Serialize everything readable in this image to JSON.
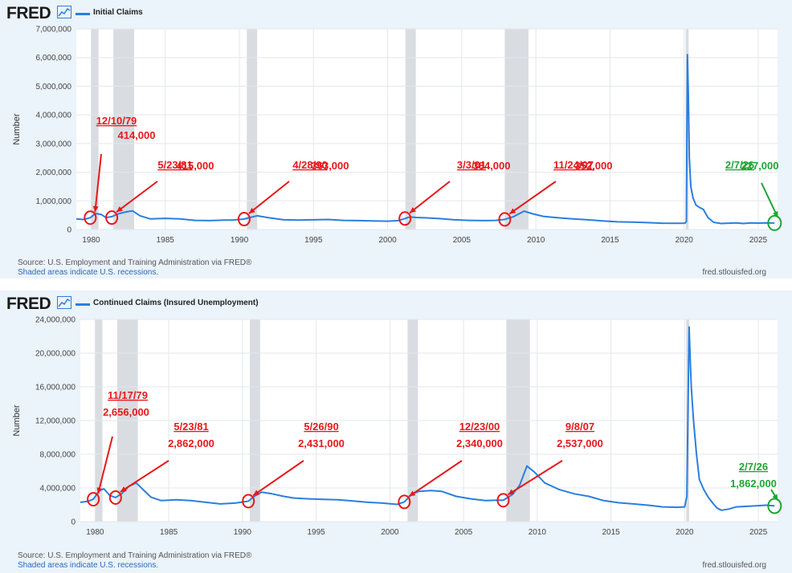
{
  "brand": {
    "logo_text": "FRED"
  },
  "colors": {
    "series": "#2a7fde",
    "recession": "#d9dde2",
    "red_annotation": "#e8171b",
    "green_annotation": "#1ea534",
    "panel_bg": "#ebf3fb"
  },
  "chart_data": [
    {
      "type": "line",
      "legend": "Initial Claims",
      "ylabel": "Number",
      "ylim": [
        0,
        7000000
      ],
      "yticks": [
        0,
        1000000,
        2000000,
        3000000,
        4000000,
        5000000,
        6000000,
        7000000
      ],
      "ytick_labels": [
        "0",
        "1,000,000",
        "2,000,000",
        "3,000,000",
        "4,000,000",
        "5,000,000",
        "6,000,000",
        "7,000,000"
      ],
      "xlim": [
        1979,
        2026.3
      ],
      "xticks": [
        1980,
        1985,
        1990,
        1995,
        2000,
        2005,
        2010,
        2015,
        2020,
        2025
      ],
      "recessions": [
        [
          1980.0,
          1980.5
        ],
        [
          1981.5,
          1982.9
        ],
        [
          1990.5,
          1991.2
        ],
        [
          2001.2,
          2001.9
        ],
        [
          2007.9,
          2009.5
        ],
        [
          2020.1,
          2020.3
        ]
      ],
      "series": [
        {
          "name": "Initial Claims",
          "x": [
            1979.0,
            1979.5,
            1979.95,
            1980.3,
            1980.7,
            1981.0,
            1981.4,
            1981.9,
            1982.4,
            1982.8,
            1983.3,
            1984.0,
            1985.0,
            1986.0,
            1987.0,
            1988.0,
            1989.0,
            1989.5,
            1990.3,
            1990.8,
            1991.2,
            1992.0,
            1993.0,
            1994.0,
            1995.0,
            1996.0,
            1997.0,
            1998.0,
            1999.0,
            2000.0,
            2000.7,
            2001.17,
            2001.5,
            2001.9,
            2002.5,
            2003.5,
            2004.5,
            2005.5,
            2006.5,
            2007.3,
            2007.9,
            2008.5,
            2009.2,
            2009.7,
            2010.5,
            2011.5,
            2012.5,
            2013.5,
            2014.5,
            2015.5,
            2016.5,
            2017.5,
            2018.5,
            2019.5,
            2020.05,
            2020.15,
            2020.22,
            2020.28,
            2020.35,
            2020.45,
            2020.6,
            2020.8,
            2021.0,
            2021.3,
            2021.6,
            2022.0,
            2022.5,
            2023.0,
            2023.5,
            2024.0,
            2024.5,
            2025.0,
            2025.5,
            2026.1
          ],
          "values": [
            370000,
            350000,
            414000,
            560000,
            520000,
            415000,
            450000,
            560000,
            620000,
            650000,
            480000,
            370000,
            390000,
            370000,
            320000,
            310000,
            330000,
            330000,
            363000,
            430000,
            480000,
            410000,
            340000,
            330000,
            340000,
            350000,
            320000,
            310000,
            300000,
            290000,
            310000,
            384000,
            440000,
            420000,
            410000,
            380000,
            340000,
            320000,
            310000,
            320000,
            352000,
            450000,
            640000,
            560000,
            460000,
            410000,
            370000,
            340000,
            300000,
            270000,
            260000,
            240000,
            220000,
            215000,
            220000,
            280000,
            6100000,
            4800000,
            2500000,
            1500000,
            1100000,
            850000,
            780000,
            700000,
            420000,
            250000,
            210000,
            220000,
            230000,
            210000,
            230000,
            225000,
            230000,
            227000
          ]
        }
      ],
      "annotations": [
        {
          "date": "12/10/79",
          "value": "414,000",
          "x": 1979.94,
          "y": 414000,
          "color": "red"
        },
        {
          "date": "5/23/81",
          "value": "415,000",
          "x": 1981.39,
          "y": 415000,
          "color": "red"
        },
        {
          "date": "4/28/90",
          "value": "363,000",
          "x": 1990.32,
          "y": 363000,
          "color": "red"
        },
        {
          "date": "3/3/01",
          "value": "384,000",
          "x": 2001.17,
          "y": 384000,
          "color": "red"
        },
        {
          "date": "11/24/07",
          "value": "352,000",
          "x": 2007.9,
          "y": 352000,
          "color": "red"
        },
        {
          "date": "2/7/26",
          "value": "227,000",
          "x": 2026.1,
          "y": 227000,
          "color": "green"
        }
      ],
      "source": "Source: U.S. Employment and Training Administration via FRED®",
      "shaded_note": "Shaded areas indicate U.S. recessions.",
      "site": "fred.stlouisfed.org"
    },
    {
      "type": "line",
      "legend": "Continued Claims (Insured Unemployment)",
      "ylabel": "Number",
      "ylim": [
        0,
        24000000
      ],
      "yticks": [
        0,
        4000000,
        8000000,
        12000000,
        16000000,
        20000000,
        24000000
      ],
      "ytick_labels": [
        "0",
        "4,000,000",
        "8,000,000",
        "12,000,000",
        "16,000,000",
        "20,000,000",
        "24,000,000"
      ],
      "xlim": [
        1979,
        2026.3
      ],
      "xticks": [
        1980,
        1985,
        1990,
        1995,
        2000,
        2005,
        2010,
        2015,
        2020,
        2025
      ],
      "recessions": [
        [
          1980.0,
          1980.5
        ],
        [
          1981.5,
          1982.9
        ],
        [
          1990.5,
          1991.2
        ],
        [
          2001.2,
          2001.9
        ],
        [
          2007.9,
          2009.5
        ],
        [
          2020.1,
          2020.3
        ]
      ],
      "series": [
        {
          "name": "Continued Claims (Insured Unemployment)",
          "x": [
            1979.0,
            1979.5,
            1979.88,
            1980.3,
            1980.6,
            1981.0,
            1981.39,
            1981.8,
            1982.3,
            1982.8,
            1983.2,
            1983.8,
            1984.5,
            1985.5,
            1986.5,
            1987.5,
            1988.5,
            1989.5,
            1990.4,
            1990.8,
            1991.3,
            1992.0,
            1992.8,
            1993.5,
            1994.5,
            1995.5,
            1996.5,
            1997.5,
            1998.5,
            1999.5,
            2000.5,
            2000.98,
            2001.5,
            2002.0,
            2002.8,
            2003.5,
            2004.5,
            2005.5,
            2006.5,
            2007.3,
            2007.69,
            2008.3,
            2008.8,
            2009.3,
            2009.8,
            2010.5,
            2011.5,
            2012.5,
            2013.5,
            2014.5,
            2015.5,
            2016.5,
            2017.5,
            2018.5,
            2019.5,
            2020.0,
            2020.15,
            2020.3,
            2020.38,
            2020.45,
            2020.6,
            2020.8,
            2021.0,
            2021.3,
            2021.6,
            2021.9,
            2022.2,
            2022.5,
            2023.0,
            2023.5,
            2024.0,
            2024.5,
            2025.0,
            2025.5,
            2026.1
          ],
          "values": [
            2300000,
            2400000,
            2656000,
            3700000,
            3900000,
            3100000,
            2862000,
            3300000,
            4200000,
            4600000,
            3900000,
            2900000,
            2500000,
            2600000,
            2500000,
            2300000,
            2100000,
            2200000,
            2431000,
            3000000,
            3500000,
            3300000,
            3000000,
            2800000,
            2700000,
            2650000,
            2600000,
            2450000,
            2300000,
            2200000,
            2050000,
            2340000,
            3300000,
            3600000,
            3700000,
            3600000,
            3000000,
            2700000,
            2500000,
            2550000,
            2537000,
            3200000,
            4300000,
            6600000,
            5900000,
            4600000,
            3800000,
            3300000,
            3000000,
            2500000,
            2250000,
            2100000,
            1950000,
            1750000,
            1700000,
            1750000,
            3000000,
            23100000,
            19000000,
            16000000,
            12000000,
            8000000,
            5000000,
            3800000,
            2900000,
            2200000,
            1600000,
            1350000,
            1500000,
            1750000,
            1800000,
            1850000,
            1900000,
            1950000,
            1862000
          ]
        }
      ],
      "annotations": [
        {
          "date": "11/17/79",
          "value": "2,656,000",
          "x": 1979.88,
          "y": 2656000,
          "color": "red"
        },
        {
          "date": "5/23/81",
          "value": "2,862,000",
          "x": 1981.39,
          "y": 2862000,
          "color": "red"
        },
        {
          "date": "5/26/90",
          "value": "2,431,000",
          "x": 1990.4,
          "y": 2431000,
          "color": "red"
        },
        {
          "date": "12/23/00",
          "value": "2,340,000",
          "x": 2000.98,
          "y": 2340000,
          "color": "red"
        },
        {
          "date": "9/8/07",
          "value": "2,537,000",
          "x": 2007.69,
          "y": 2537000,
          "color": "red"
        },
        {
          "date": "2/7/26",
          "value": "1,862,000",
          "x": 2026.1,
          "y": 1862000,
          "color": "green"
        }
      ],
      "source": "Source: U.S. Employment and Training Administration via FRED®",
      "shaded_note": "Shaded areas indicate U.S. recessions.",
      "site": "fred.stlouisfed.org"
    }
  ]
}
